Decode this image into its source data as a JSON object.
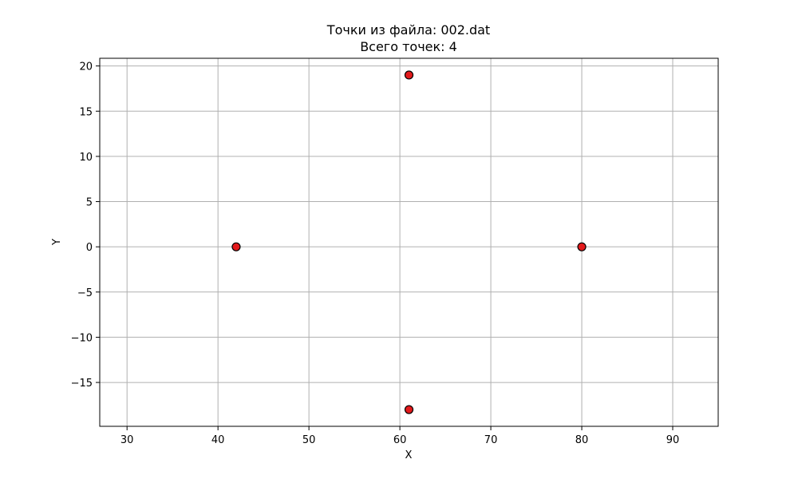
{
  "chart_data": {
    "type": "scatter",
    "title": "Точки из файла: 002.dat",
    "subtitle": "Всего точек: 4",
    "xlabel": "X",
    "ylabel": "Y",
    "xlim": [
      27,
      95
    ],
    "ylim": [
      -19.85,
      20.85
    ],
    "xticks": [
      30,
      40,
      50,
      60,
      70,
      80,
      90
    ],
    "xtick_labels": [
      "30",
      "40",
      "50",
      "60",
      "70",
      "80",
      "90"
    ],
    "yticks": [
      -15,
      -10,
      -5,
      0,
      5,
      10,
      15,
      20
    ],
    "ytick_labels": [
      "−15",
      "−10",
      "−5",
      "0",
      "5",
      "10",
      "15",
      "20"
    ],
    "grid": true,
    "marker_color": "#e31a1c",
    "marker_edge_color": "#000000",
    "series": [
      {
        "points": [
          {
            "x": 42,
            "y": 0
          },
          {
            "x": 61,
            "y": 19
          },
          {
            "x": 80,
            "y": 0
          },
          {
            "x": 61,
            "y": -18
          }
        ]
      }
    ]
  }
}
